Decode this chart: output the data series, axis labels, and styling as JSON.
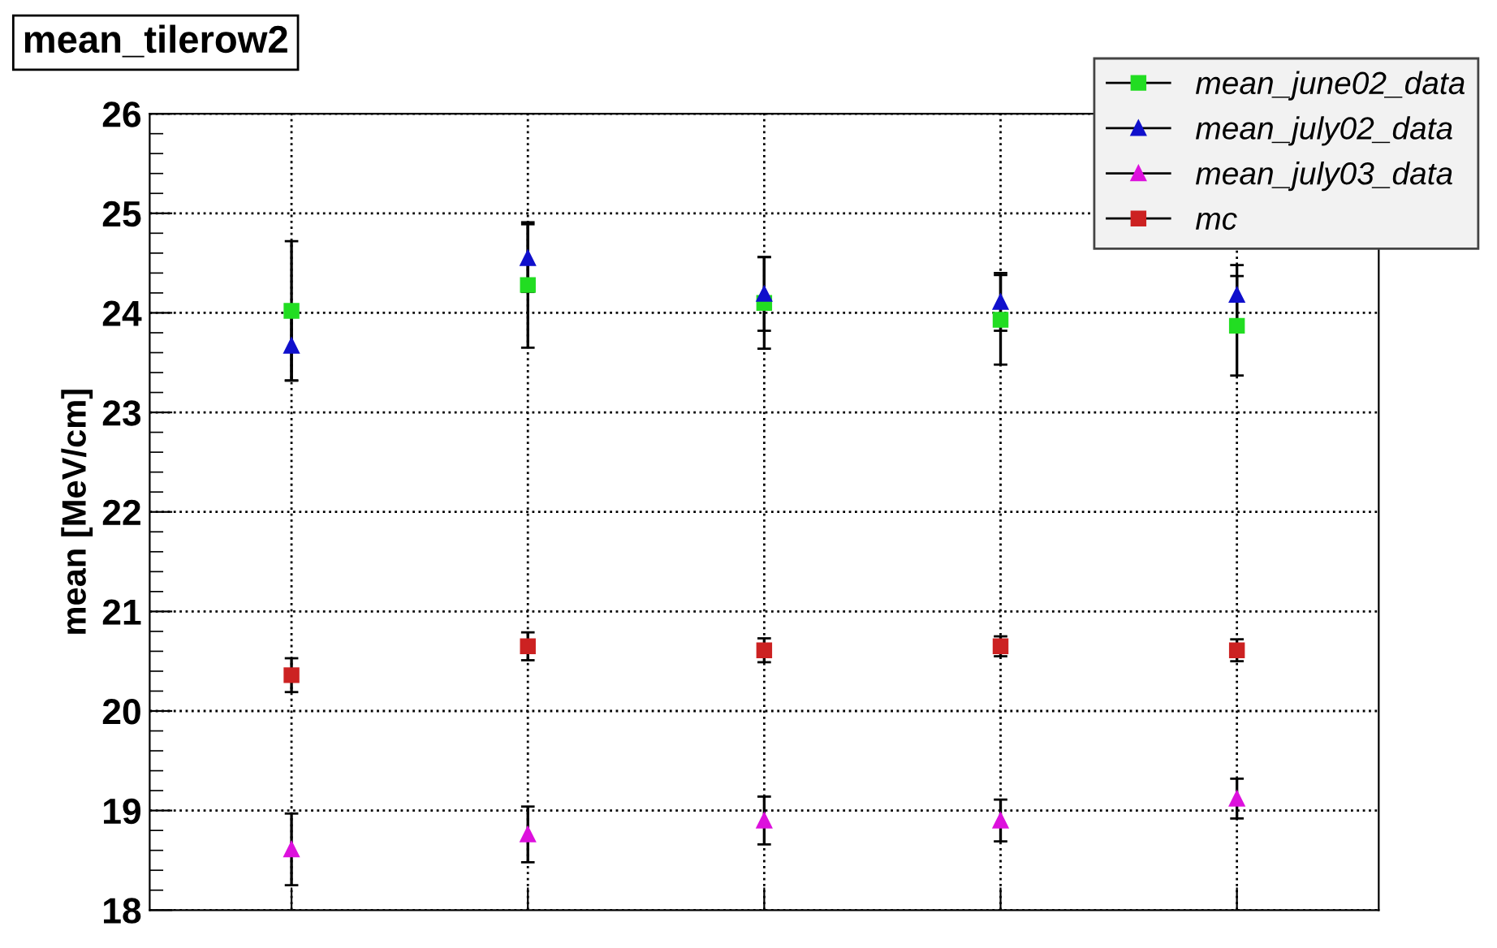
{
  "chart_data": {
    "type": "scatter",
    "title": "mean_tilerow2",
    "ylabel": "mean [MeV/cm]",
    "categories": [
      null,
      null,
      null,
      null,
      null
    ],
    "series": [
      {
        "name": "mean_june02_data",
        "color": "#22dd22",
        "marker": "square",
        "values": [
          24.02,
          24.28,
          24.1,
          23.93,
          23.87
        ],
        "errors": [
          0.7,
          0.63,
          0.46,
          0.45,
          0.5
        ]
      },
      {
        "name": "mean_july02_data",
        "color": "#1010cc",
        "marker": "triangle",
        "values": [
          23.67,
          24.55,
          24.19,
          24.11,
          24.18
        ],
        "errors": [
          0.35,
          0.34,
          0.37,
          0.29,
          0.3
        ]
      },
      {
        "name": "mean_july03_data",
        "color": "#dd11dd",
        "marker": "triangle",
        "values": [
          18.61,
          18.76,
          18.9,
          18.9,
          19.12
        ],
        "errors": [
          0.36,
          0.28,
          0.24,
          0.21,
          0.2
        ]
      },
      {
        "name": "mc",
        "color": "#cc2222",
        "marker": "square",
        "values": [
          20.36,
          20.65,
          20.61,
          20.65,
          20.61
        ],
        "errors": [
          0.17,
          0.14,
          0.12,
          0.1,
          0.11
        ]
      }
    ],
    "ylim": [
      18,
      26
    ],
    "yticks": [
      18,
      19,
      20,
      21,
      22,
      23,
      24,
      25,
      26
    ],
    "grid": true,
    "legend": "top right",
    "tick_labels": "y"
  }
}
